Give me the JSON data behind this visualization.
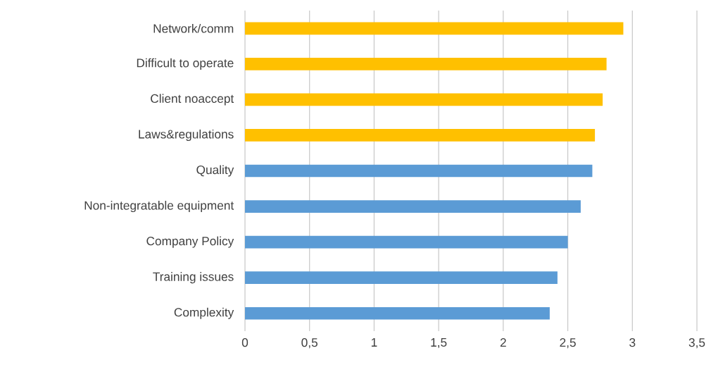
{
  "chart_data": {
    "type": "bar",
    "orientation": "horizontal",
    "categories": [
      "Network/comm",
      "Difficult to operate",
      "Client noaccept",
      "Laws&regulations",
      "Quality",
      "Non-integratable equipment",
      "Company Policy",
      "Training issues",
      "Complexity"
    ],
    "values": [
      2.93,
      2.8,
      2.77,
      2.71,
      2.69,
      2.6,
      2.5,
      2.42,
      2.36
    ],
    "colors": [
      "#ffc000",
      "#ffc000",
      "#ffc000",
      "#ffc000",
      "#5b9bd5",
      "#5b9bd5",
      "#5b9bd5",
      "#5b9bd5",
      "#5b9bd5"
    ],
    "xlim": [
      0,
      3.5
    ],
    "xticks": [
      0,
      {
        "value": 0.5,
        "label": "0,5"
      },
      1,
      {
        "value": 1.5,
        "label": "1,5"
      },
      2,
      {
        "value": 2.5,
        "label": "2,5"
      },
      3,
      {
        "value": 3.5,
        "label": "3,5"
      }
    ],
    "grid": "x"
  }
}
